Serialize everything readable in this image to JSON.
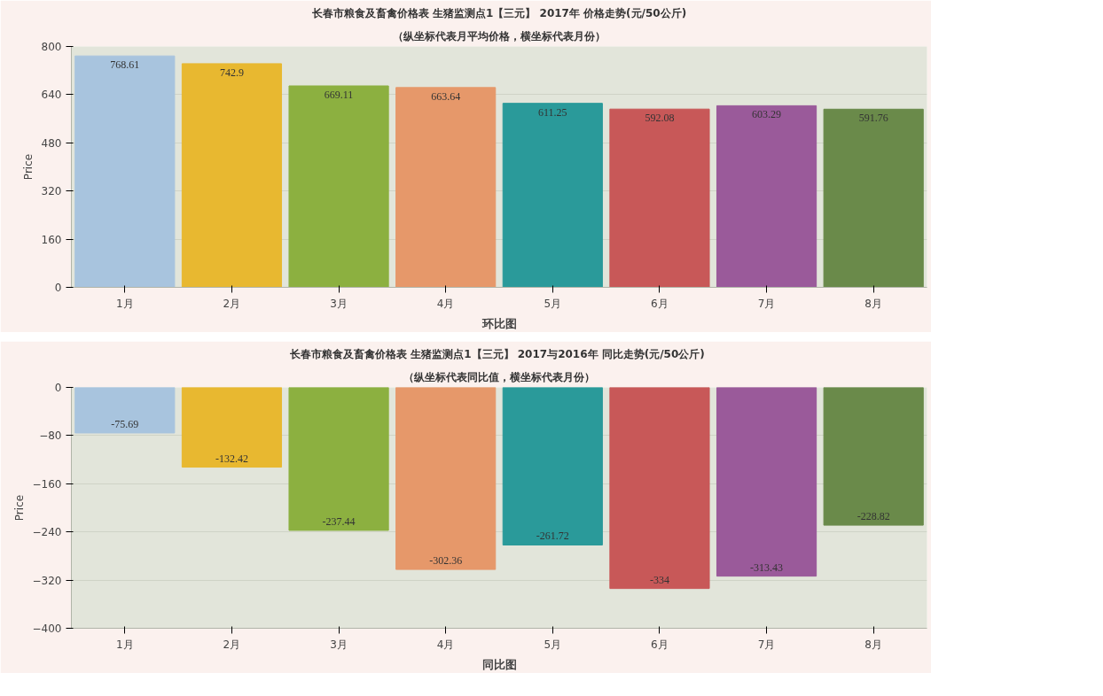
{
  "chart_data": [
    {
      "type": "bar",
      "title": "长春市粮食及畜禽价格表 生猪监测点1【三元】 2017年 价格走势(元/50公斤)",
      "subtitle": "（纵坐标代表月平均价格，横坐标代表月份）",
      "xlabel": "环比图",
      "ylabel": "Price",
      "categories": [
        "1月",
        "2月",
        "3月",
        "4月",
        "5月",
        "6月",
        "7月",
        "8月"
      ],
      "values": [
        768.61,
        742.9,
        669.11,
        663.64,
        611.25,
        592.08,
        603.29,
        591.76
      ],
      "colors": [
        "#a8c4de",
        "#e8b830",
        "#8cb040",
        "#e6986a",
        "#2a9a9a",
        "#c85858",
        "#9a5a9a",
        "#6a8a4a"
      ],
      "ylim": [
        0,
        800
      ],
      "yticks": [
        0,
        160,
        320,
        480,
        640,
        800
      ],
      "grid": "y",
      "data_labels": true
    },
    {
      "type": "bar",
      "title": "长春市粮食及畜禽价格表 生猪监测点1【三元】 2017与2016年  同比走势(元/50公斤)",
      "subtitle": "（纵坐标代表同比值，横坐标代表月份）",
      "xlabel": "同比图",
      "ylabel": "Price",
      "categories": [
        "1月",
        "2月",
        "3月",
        "4月",
        "5月",
        "6月",
        "7月",
        "8月"
      ],
      "values": [
        -75.69,
        -132.42,
        -237.44,
        -302.36,
        -261.72,
        -334,
        -313.43,
        -228.82
      ],
      "colors": [
        "#a8c4de",
        "#e8b830",
        "#8cb040",
        "#e6986a",
        "#2a9a9a",
        "#c85858",
        "#9a5a9a",
        "#6a8a4a"
      ],
      "ylim": [
        -400,
        0
      ],
      "yticks": [
        0,
        -80,
        -160,
        -240,
        -320,
        -400
      ],
      "grid": "y",
      "data_labels": true
    }
  ]
}
